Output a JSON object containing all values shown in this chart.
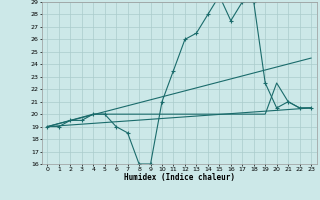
{
  "xlabel": "Humidex (Indice chaleur)",
  "xlim": [
    -0.5,
    23.5
  ],
  "ylim": [
    16,
    29
  ],
  "xticks": [
    0,
    1,
    2,
    3,
    4,
    5,
    6,
    7,
    8,
    9,
    10,
    11,
    12,
    13,
    14,
    15,
    16,
    17,
    18,
    19,
    20,
    21,
    22,
    23
  ],
  "yticks": [
    16,
    17,
    18,
    19,
    20,
    21,
    22,
    23,
    24,
    25,
    26,
    27,
    28,
    29
  ],
  "background_color": "#cce8e8",
  "grid_color": "#aacccc",
  "line_color": "#1a6b6b",
  "lines": [
    {
      "x": [
        0,
        1,
        2,
        3,
        4,
        5,
        6,
        7,
        8,
        9,
        10,
        11,
        12,
        13,
        14,
        15,
        16,
        17,
        18,
        19,
        20,
        21,
        22,
        23
      ],
      "y": [
        19,
        19,
        19.5,
        19.5,
        20,
        20,
        19,
        18.5,
        16,
        16,
        21,
        23.5,
        26,
        26.5,
        28,
        29.5,
        27.5,
        29,
        29,
        22.5,
        20.5,
        21,
        20.5,
        20.5
      ],
      "marker": true
    },
    {
      "x": [
        0,
        23
      ],
      "y": [
        19,
        24.5
      ],
      "marker": false
    },
    {
      "x": [
        0,
        23
      ],
      "y": [
        19,
        20.5
      ],
      "marker": false
    },
    {
      "x": [
        0,
        4,
        9,
        19,
        20,
        21,
        22,
        23
      ],
      "y": [
        19,
        20,
        20,
        20,
        22.5,
        21,
        20.5,
        20.5
      ],
      "marker": false
    }
  ]
}
